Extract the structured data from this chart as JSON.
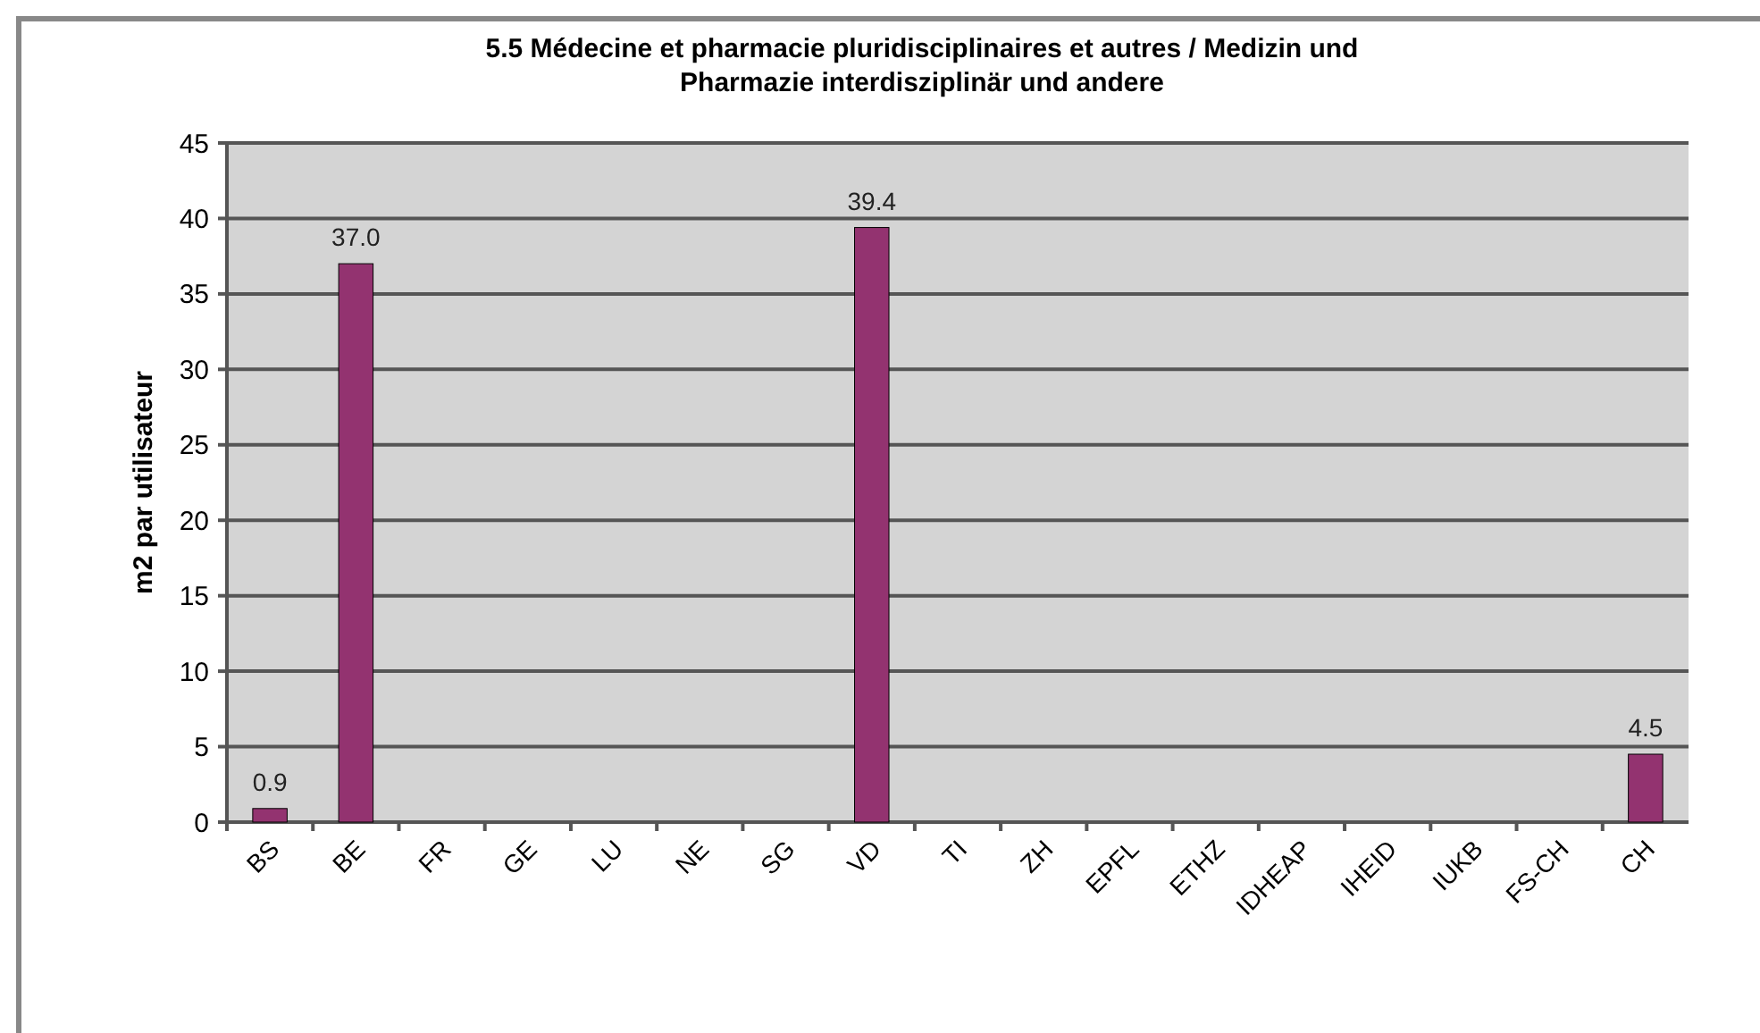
{
  "chart_data": {
    "type": "bar",
    "title": "5.5 Médecine et pharmacie pluridisciplinaires et autres / Medizin und Pharmazie interdisziplinär und andere",
    "ylabel": "m2 par utilisateur",
    "categories": [
      "BS",
      "BE",
      "FR",
      "GE",
      "LU",
      "NE",
      "SG",
      "VD",
      "TI",
      "ZH",
      "EPFL",
      "ETHZ",
      "IDHEAP",
      "IHEID",
      "IUKB",
      "FS-CH",
      "CH"
    ],
    "values": [
      0.9,
      37.0,
      null,
      null,
      null,
      null,
      null,
      39.4,
      null,
      null,
      null,
      null,
      null,
      null,
      null,
      null,
      4.5
    ],
    "value_labels": [
      "0.9",
      "37.0",
      null,
      null,
      null,
      null,
      null,
      "39.4",
      null,
      null,
      null,
      null,
      null,
      null,
      null,
      null,
      "4.5"
    ],
    "color": "#933370",
    "ylim": [
      0,
      45
    ],
    "yticks": [
      0,
      5,
      10,
      15,
      20,
      25,
      30,
      35,
      40,
      45
    ],
    "grid": "y"
  }
}
